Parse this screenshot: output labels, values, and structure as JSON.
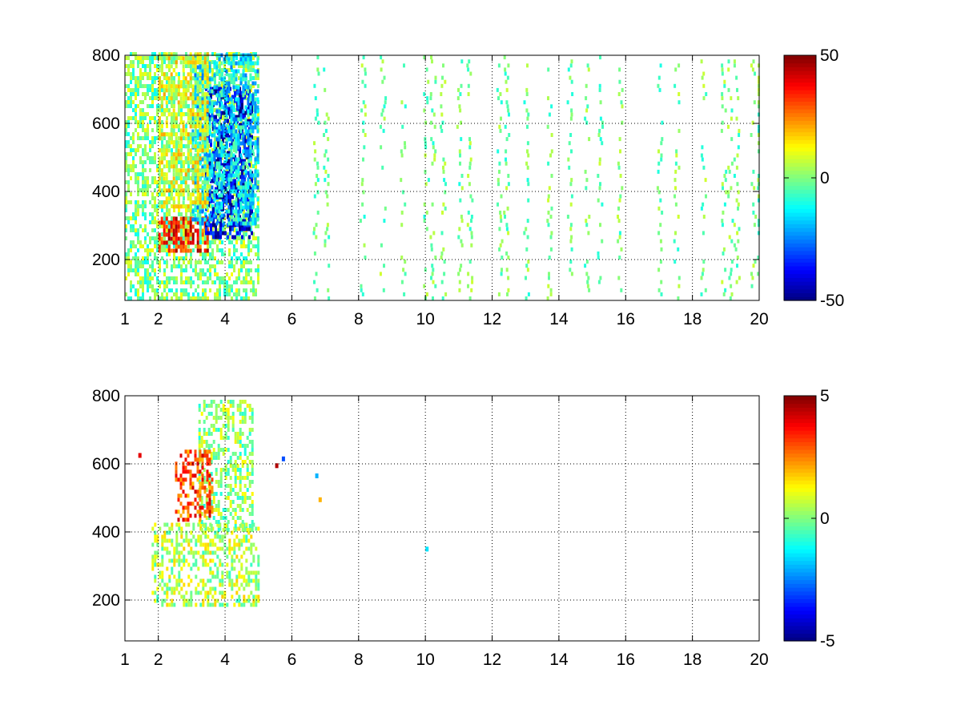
{
  "chart_data": [
    {
      "type": "heatmap",
      "title": "",
      "xlabel": "",
      "ylabel": "",
      "xlim": [
        1,
        20
      ],
      "ylim": [
        80,
        800
      ],
      "x_ticks": [
        1,
        2,
        4,
        6,
        8,
        10,
        12,
        14,
        16,
        18,
        20
      ],
      "y_ticks": [
        200,
        400,
        600,
        800
      ],
      "grid": true,
      "colormap": "jet",
      "colorbar": {
        "min": -50,
        "max": 50,
        "ticks": [
          50,
          0,
          -50
        ]
      },
      "regions": [
        {
          "x_range": [
            1.0,
            5.0
          ],
          "y_range": [
            80,
            800
          ],
          "value": 0,
          "note": ""
        },
        {
          "x_range": [
            2.0,
            3.5
          ],
          "y_range": [
            220,
            320
          ],
          "value": 35
        },
        {
          "x_range": [
            3.4,
            4.8
          ],
          "y_range": [
            260,
            700
          ],
          "value": -40
        },
        {
          "x_range": [
            3.0,
            5.0
          ],
          "y_range": [
            300,
            800
          ],
          "value": -15
        },
        {
          "x_range": [
            2.0,
            3.5
          ],
          "y_range": [
            350,
            800
          ],
          "value": 10
        }
      ],
      "stripe_columns_x": [
        6.7,
        7.0,
        8.1,
        8.7,
        9.3,
        10.0,
        10.2,
        10.5,
        11.0,
        11.3,
        12.2,
        12.4,
        13.0,
        13.7,
        14.3,
        14.8,
        15.2,
        15.8,
        17.0,
        17.5,
        18.3,
        18.9,
        19.1,
        19.3,
        19.8,
        20.0
      ],
      "stripe_value_range": [
        -10,
        8
      ]
    },
    {
      "type": "heatmap",
      "title": "",
      "xlabel": "",
      "ylabel": "",
      "xlim": [
        1,
        20
      ],
      "ylim": [
        80,
        800
      ],
      "x_ticks": [
        1,
        2,
        4,
        6,
        8,
        10,
        12,
        14,
        16,
        18,
        20
      ],
      "y_ticks": [
        200,
        400,
        600,
        800
      ],
      "grid": true,
      "colormap": "jet",
      "colorbar": {
        "min": -5,
        "max": 5,
        "ticks": [
          5,
          0,
          -5
        ]
      },
      "regions": [
        {
          "x_range": [
            1.8,
            5.0
          ],
          "y_range": [
            180,
            420
          ],
          "value": 0.5
        },
        {
          "x_range": [
            3.2,
            4.8
          ],
          "y_range": [
            400,
            780
          ],
          "value": 0.2
        },
        {
          "x_range": [
            2.5,
            3.6
          ],
          "y_range": [
            430,
            640
          ],
          "value": 3
        }
      ],
      "outliers": [
        {
          "x": 1.4,
          "y": 620,
          "value": 4
        },
        {
          "x": 5.5,
          "y": 590,
          "value": 4.5
        },
        {
          "x": 5.7,
          "y": 610,
          "value": -3
        },
        {
          "x": 6.7,
          "y": 560,
          "value": -2
        },
        {
          "x": 6.8,
          "y": 490,
          "value": 2
        },
        {
          "x": 10.0,
          "y": 345,
          "value": -1.5
        }
      ]
    }
  ]
}
